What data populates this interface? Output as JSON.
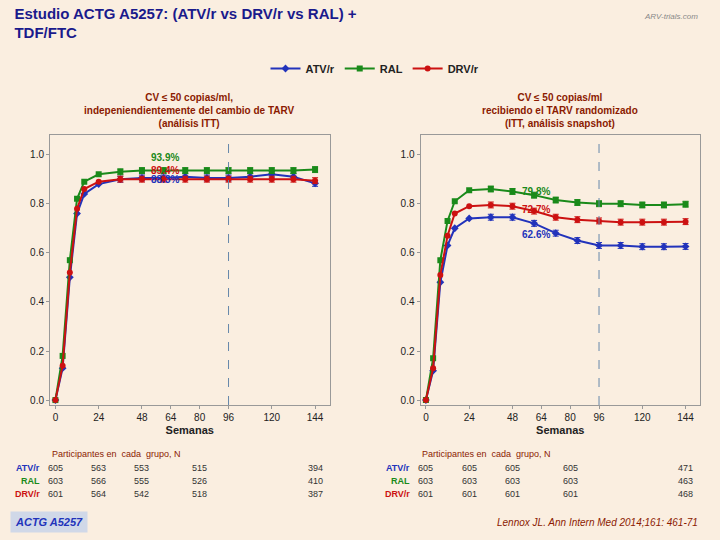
{
  "title": "Estudio ACTG A5257: (ATV/r vs DRV/r vs RAL) +\nTDF/FTC",
  "notes": [
    "ARV-trials.com"
  ],
  "footer": {
    "label": "ACTG A5257",
    "source": "Lennox JL. Ann Intern Med 2014;161: 461-71"
  },
  "legend": "top",
  "chart_data": [
    {
      "type": "line",
      "title": "CV ≤ 50 copias/ml,\nindepeniendientemente del cambio de TARV\n(análisis ITT)",
      "xlabel": "Semanas",
      "x": [
        0,
        4,
        8,
        12,
        16,
        24,
        36,
        48,
        60,
        72,
        84,
        96,
        108,
        120,
        132,
        144
      ],
      "xlim": [
        -3,
        152
      ],
      "xticks": [
        0,
        24,
        48,
        64,
        80,
        96,
        120,
        144
      ],
      "ylim": [
        -0.02,
        1.08
      ],
      "yticks": [
        {
          "value": 0,
          "label": "0.0"
        },
        0.2,
        0.4,
        0.6,
        0.8,
        {
          "value": 1,
          "label": "1.0"
        }
      ],
      "grid": false,
      "vline": 96,
      "series": [
        {
          "name": "ATV/r",
          "color": "#2233bb",
          "marker": "diamond",
          "values": [
            0.0,
            0.13,
            0.5,
            0.76,
            0.84,
            0.88,
            0.9,
            0.905,
            0.905,
            0.91,
            0.905,
            0.905,
            0.91,
            0.92,
            0.91,
            0.883
          ],
          "error": [
            null,
            null,
            null,
            null,
            null,
            null,
            0.012,
            0.012,
            0.012,
            0.012,
            0.012,
            0.012,
            0.012,
            0.012,
            0.012,
            0.012
          ]
        },
        {
          "name": "RAL",
          "color": "#1a8a1a",
          "marker": "square",
          "values": [
            0.0,
            0.18,
            0.57,
            0.82,
            0.89,
            0.92,
            0.93,
            0.935,
            0.935,
            0.935,
            0.935,
            0.935,
            0.935,
            0.935,
            0.935,
            0.939
          ],
          "error": [
            null,
            null,
            null,
            null,
            null,
            null,
            0.012,
            0.012,
            0.012,
            0.012,
            0.012,
            0.012,
            0.012,
            0.012,
            0.012,
            0.012
          ]
        },
        {
          "name": "DRV/r",
          "color": "#cc1111",
          "marker": "circle",
          "values": [
            0.0,
            0.14,
            0.52,
            0.78,
            0.86,
            0.89,
            0.9,
            0.9,
            0.9,
            0.9,
            0.9,
            0.9,
            0.9,
            0.9,
            0.9,
            0.894
          ],
          "error": [
            null,
            null,
            null,
            null,
            null,
            null,
            0.012,
            0.012,
            0.012,
            0.012,
            0.012,
            0.012,
            0.012,
            0.012,
            0.012,
            0.012
          ]
        }
      ],
      "annotations": [
        {
          "text": "93.9%",
          "x": 52,
          "y": 0.958,
          "color": "#1a8a1a"
        },
        {
          "text": "89.4%",
          "x": 52,
          "y": 0.906,
          "color": "#cc1111"
        },
        {
          "text": "88.3%",
          "x": 52,
          "y": 0.869,
          "color": "#2233bb"
        }
      ],
      "table": {
        "title": "Participantes en  cada  grupo, N",
        "x": [
          0,
          24,
          48,
          80,
          144
        ],
        "rows": [
          {
            "name": "ATV/r",
            "color": "#2233bb",
            "values": [
              605,
              563,
              553,
              515,
              394
            ]
          },
          {
            "name": "RAL",
            "color": "#1a8a1a",
            "values": [
              603,
              566,
              555,
              526,
              410
            ]
          },
          {
            "name": "DRV/r",
            "color": "#cc1111",
            "values": [
              601,
              564,
              542,
              518,
              387
            ]
          }
        ]
      }
    },
    {
      "type": "line",
      "title": "CV ≤ 50 copias/ml\nrecibiendo el TARV randomizado\n(ITT, análisis snapshot)",
      "xlabel": "Semanas",
      "x": [
        0,
        4,
        8,
        12,
        16,
        24,
        36,
        48,
        60,
        72,
        84,
        96,
        108,
        120,
        132,
        144
      ],
      "xlim": [
        -3,
        152
      ],
      "xticks": [
        0,
        24,
        48,
        64,
        80,
        96,
        120,
        144
      ],
      "ylim": [
        -0.02,
        1.08
      ],
      "yticks": [
        {
          "value": 0,
          "label": "0.0"
        },
        0.2,
        0.4,
        0.6,
        0.8,
        {
          "value": 1,
          "label": "1.0"
        }
      ],
      "grid": false,
      "vline": 96,
      "series": [
        {
          "name": "ATV/r",
          "color": "#2233bb",
          "marker": "diamond",
          "values": [
            0.0,
            0.12,
            0.48,
            0.63,
            0.7,
            0.74,
            0.745,
            0.745,
            0.72,
            0.68,
            0.65,
            0.63,
            0.63,
            0.625,
            0.625,
            0.626
          ],
          "error": [
            null,
            null,
            null,
            null,
            null,
            null,
            0.012,
            0.012,
            0.012,
            0.012,
            0.012,
            0.012,
            0.012,
            0.012,
            0.012,
            0.012
          ]
        },
        {
          "name": "RAL",
          "color": "#1a8a1a",
          "marker": "square",
          "values": [
            0.0,
            0.17,
            0.57,
            0.73,
            0.81,
            0.855,
            0.86,
            0.85,
            0.835,
            0.815,
            0.805,
            0.8,
            0.8,
            0.795,
            0.795,
            0.798
          ],
          "error": [
            null,
            null,
            null,
            null,
            null,
            null,
            0.012,
            0.012,
            0.012,
            0.012,
            0.012,
            0.012,
            0.012,
            0.012,
            0.012,
            0.012
          ]
        },
        {
          "name": "DRV/r",
          "color": "#cc1111",
          "marker": "circle",
          "values": [
            0.0,
            0.13,
            0.51,
            0.67,
            0.76,
            0.79,
            0.795,
            0.79,
            0.77,
            0.745,
            0.735,
            0.73,
            0.725,
            0.725,
            0.725,
            0.727
          ],
          "error": [
            null,
            null,
            null,
            null,
            null,
            null,
            0.012,
            0.012,
            0.012,
            0.012,
            0.012,
            0.012,
            0.012,
            0.012,
            0.012,
            0.012
          ]
        }
      ],
      "annotations": [
        {
          "text": "79.8%",
          "x": 52,
          "y": 0.82,
          "color": "#1a8a1a"
        },
        {
          "text": "72.7%",
          "x": 52,
          "y": 0.745,
          "color": "#cc1111"
        },
        {
          "text": "62.6%",
          "x": 52,
          "y": 0.645,
          "color": "#2233bb"
        }
      ],
      "table": {
        "title": "Participantes en  cada  grupo, N",
        "x": [
          0,
          24,
          48,
          80,
          144
        ],
        "rows": [
          {
            "name": "ATV/r",
            "color": "#2233bb",
            "values": [
              605,
              605,
              605,
              605,
              471
            ]
          },
          {
            "name": "RAL",
            "color": "#1a8a1a",
            "values": [
              603,
              603,
              603,
              603,
              463
            ]
          },
          {
            "name": "DRV/r",
            "color": "#cc1111",
            "values": [
              601,
              601,
              601,
              601,
              468
            ]
          }
        ]
      }
    }
  ]
}
